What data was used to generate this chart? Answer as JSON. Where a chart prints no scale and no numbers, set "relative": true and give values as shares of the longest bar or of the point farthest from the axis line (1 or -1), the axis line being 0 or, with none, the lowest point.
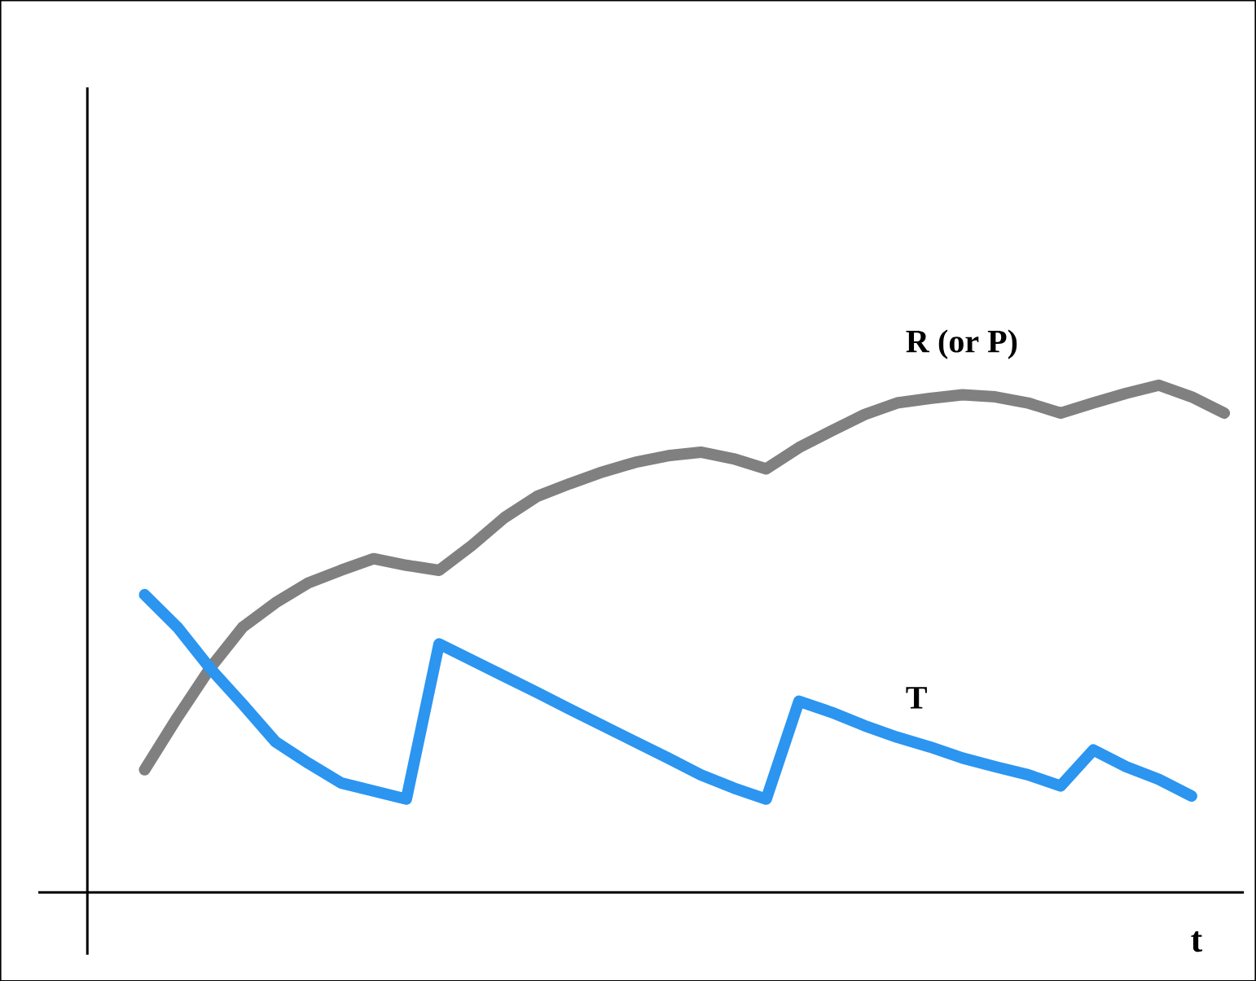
{
  "chart_data": {
    "type": "line",
    "relative": true,
    "xlabel": "t",
    "legend": false,
    "categories": [
      null,
      null,
      null,
      null,
      null,
      null,
      null,
      null,
      null,
      null,
      null,
      null,
      null,
      null,
      null,
      null,
      null,
      null,
      null,
      null,
      null,
      null,
      null,
      null,
      null,
      null,
      null,
      null,
      null,
      null,
      null,
      null,
      null,
      null
    ],
    "series": [
      {
        "name": "**R** (or P)",
        "color": "#808080",
        "values": [
          0.242,
          0.345,
          0.442,
          0.523,
          0.571,
          0.61,
          0.635,
          0.658,
          0.645,
          0.635,
          0.684,
          0.739,
          0.781,
          0.806,
          0.829,
          0.848,
          0.861,
          0.868,
          0.855,
          0.835,
          0.877,
          0.91,
          0.942,
          0.965,
          0.974,
          0.981,
          0.977,
          0.965,
          0.945,
          0.965,
          0.984,
          1,
          0.977,
          0.945
        ]
      },
      {
        "name": "T",
        "color": "#2b95f0",
        "values": [
          0.587,
          0.523,
          0.442,
          0.371,
          0.297,
          0.255,
          0.216,
          0.2,
          0.184,
          0.49,
          0.458,
          0.426,
          0.394,
          0.361,
          0.329,
          0.297,
          0.265,
          0.232,
          0.206,
          0.184,
          0.377,
          0.355,
          0.329,
          0.306,
          0.287,
          0.265,
          0.248,
          0.232,
          0.21,
          0.281,
          0.248,
          0.223,
          0.19,
          null
        ]
      }
    ]
  }
}
